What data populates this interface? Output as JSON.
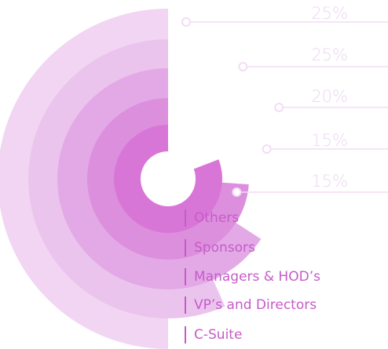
{
  "chart_data": {
    "type": "radial-bar",
    "series": [
      {
        "label": "C-Suite",
        "value": 25,
        "value_label": "25%",
        "color": "#f2d5f3"
      },
      {
        "label": "VP’s and Directors",
        "value": 25,
        "value_label": "25%",
        "color": "#ebc4ee"
      },
      {
        "label": "Managers & HOD’s",
        "value": 20,
        "value_label": "20%",
        "color": "#e3a9e6"
      },
      {
        "label": "Sponsors",
        "value": 15,
        "value_label": "15%",
        "color": "#dc8fdd"
      },
      {
        "label": "Others",
        "value": 15,
        "value_label": "15%",
        "color": "#d876d7"
      }
    ],
    "legend_order": [
      "Others",
      "Sponsors",
      "Managers & HOD’s",
      "VP’s and Directors",
      "C-Suite"
    ],
    "accent_color": "#c65bc8",
    "connector_color": "#f3dcf5"
  }
}
